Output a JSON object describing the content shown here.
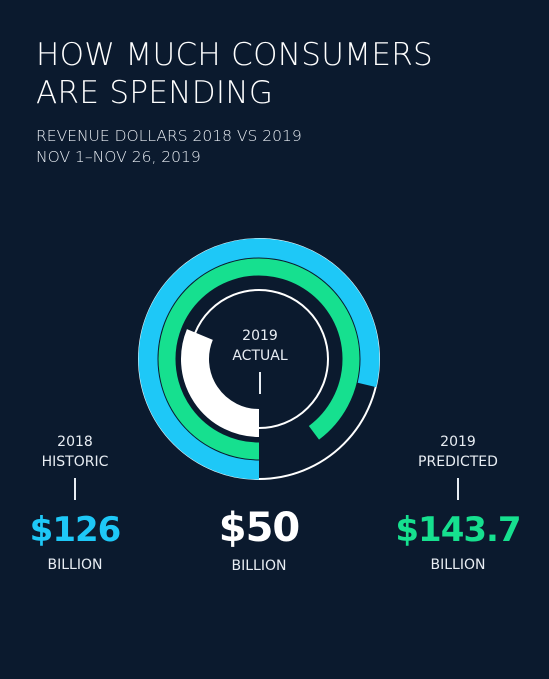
{
  "title_lines": [
    "HOW MUCH CONSUMERS",
    "ARE SPENDING"
  ],
  "subtitle_lines": [
    "REVENUE DOLLARS 2018 VS 2019",
    "NOV 1–NOV 26, 2019"
  ],
  "colors": {
    "background": "#0b1a2e",
    "historic": "#1ec8f7",
    "predicted": "#16e08f",
    "actual": "#ffffff",
    "text": "#e8edf3"
  },
  "chart_data": {
    "type": "radial-bar",
    "unit": "BILLION",
    "series": [
      {
        "label_lines": [
          "2018",
          "HISTORIC"
        ],
        "value": 126,
        "display": "$126",
        "unit": "BILLION"
      },
      {
        "label_lines": [
          "2019",
          "PREDICTED"
        ],
        "value": 143.7,
        "display": "$143.7",
        "unit": "BILLION"
      },
      {
        "label_lines": [
          "2019",
          "ACTUAL"
        ],
        "value": 50,
        "display": "$50",
        "unit": "BILLION"
      }
    ]
  }
}
